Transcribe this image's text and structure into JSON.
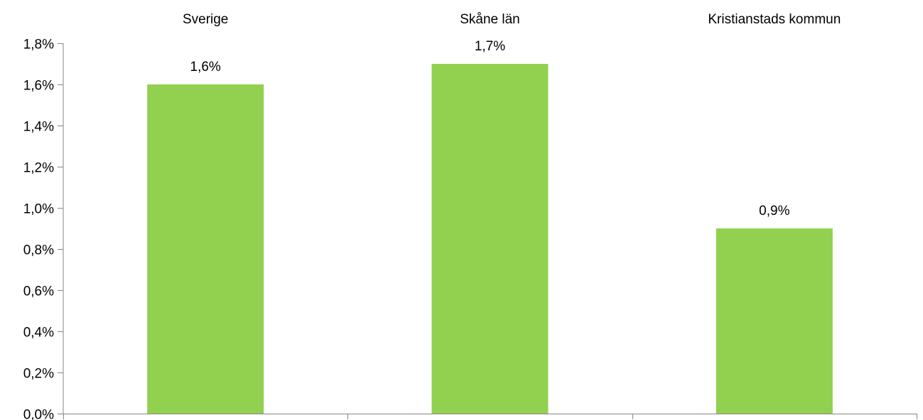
{
  "chart_data": {
    "type": "bar",
    "categories": [
      "Sverige",
      "Skåne län",
      "Kristianstads kommun"
    ],
    "values": [
      1.6,
      1.7,
      0.9
    ],
    "data_labels": [
      "1,6%",
      "1,7%",
      "0,9%"
    ],
    "title": "",
    "xlabel": "",
    "ylabel": "",
    "ylim": [
      0,
      1.8
    ],
    "y_ticks": [
      0,
      0.2,
      0.4,
      0.6,
      0.8,
      1.0,
      1.2,
      1.4,
      1.6,
      1.8
    ],
    "y_tick_labels": [
      "0,0%",
      "0,2%",
      "0,4%",
      "0,6%",
      "0,8%",
      "1,0%",
      "1,2%",
      "1,4%",
      "1,6%",
      "1,8%"
    ],
    "category_labels_position": "top",
    "grid": false,
    "legend": "none",
    "bar_color": "#92d050",
    "axis_color": "#868686"
  }
}
